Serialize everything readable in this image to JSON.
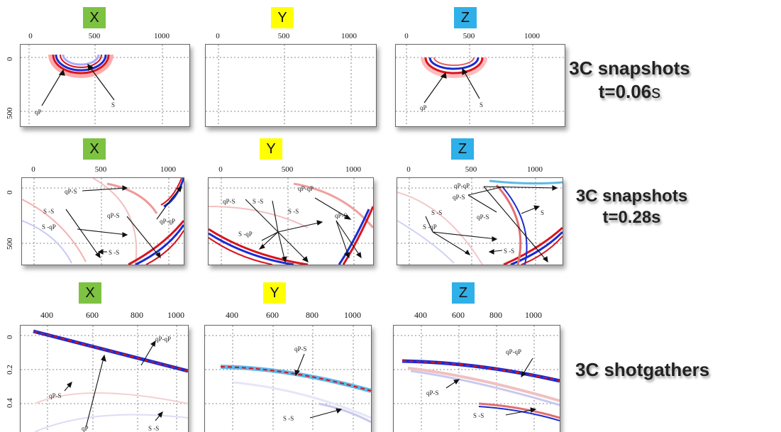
{
  "colors": {
    "x_badge": "#7dc241",
    "y_badge": "#ffff00",
    "z_badge": "#2fb0e8",
    "wave_red": "#d8141c",
    "wave_blue": "#1a2bd0"
  },
  "rows": [
    {
      "label_line1": "3C snapshots",
      "label_line2_bold": "t=0.06",
      "label_line2_rest": "s",
      "panels": [
        {
          "component": "X",
          "xticks": [
            "0",
            "500",
            "1000"
          ],
          "yticks": [
            "0",
            "500"
          ],
          "annotations": [
            "qP",
            "S"
          ]
        },
        {
          "component": "Y",
          "xticks": [
            "0",
            "500",
            "1000"
          ],
          "yticks": [],
          "annotations": []
        },
        {
          "component": "Z",
          "xticks": [
            "0",
            "500",
            "1000"
          ],
          "yticks": [],
          "annotations": [
            "qP",
            "S"
          ]
        }
      ]
    },
    {
      "label_line1": "3C snapshots",
      "label_line2_bold": "t=0.28s",
      "label_line2_rest": "",
      "panels": [
        {
          "component": "X",
          "xticks": [
            "0",
            "500",
            "1000"
          ],
          "yticks": [
            "0",
            "500"
          ],
          "annotations": [
            "qP-S",
            "S -S",
            "qP-S",
            "S -qP",
            "qP-qP",
            "S -S"
          ]
        },
        {
          "component": "Y",
          "xticks": [
            "0",
            "500",
            "1000"
          ],
          "yticks": [],
          "annotations": [
            "qP-S",
            "S -S",
            "qP-qP",
            "S -S",
            "qP-S",
            "S -qP"
          ]
        },
        {
          "component": "Z",
          "xticks": [
            "0",
            "500",
            "1000"
          ],
          "yticks": [],
          "annotations": [
            "qP-qP",
            "qP-S",
            "S -S",
            "qP-S",
            "S -qP",
            "S",
            "S -S"
          ]
        }
      ]
    },
    {
      "label_line1": "3C shotgathers",
      "label_line2_bold": "",
      "label_line2_rest": "",
      "panels": [
        {
          "component": "X",
          "xticks": [
            "400",
            "600",
            "800",
            "1000"
          ],
          "yticks": [
            "0",
            "0.2",
            "0.4"
          ],
          "annotations": [
            "qP-qP",
            "qP-S",
            "qP",
            "S -S"
          ]
        },
        {
          "component": "Y",
          "xticks": [
            "400",
            "600",
            "800",
            "1000"
          ],
          "yticks": [],
          "annotations": [
            "qP-S",
            "S -S"
          ]
        },
        {
          "component": "Z",
          "xticks": [
            "400",
            "600",
            "800",
            "1000"
          ],
          "yticks": [],
          "annotations": [
            "qP-qP",
            "qP-S",
            "S -S"
          ]
        }
      ]
    }
  ]
}
